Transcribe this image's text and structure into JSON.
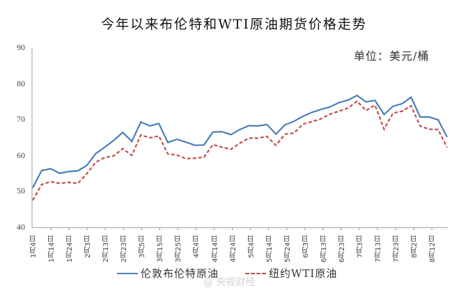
{
  "title": "今年以来布伦特和WTI原油期货价格走势",
  "unit_label": "单位：美元/桶",
  "watermark": "@ 央视财经",
  "legend": [
    {
      "label": "伦敦布伦特原油",
      "color": "#4a7ebb",
      "style": "solid"
    },
    {
      "label": "纽约WTI原油",
      "color": "#c0504d",
      "style": "dashed"
    }
  ],
  "y_ticks": [
    "90",
    "80",
    "70",
    "60",
    "50",
    "40"
  ],
  "x_ticks": [
    "1月4日",
    "1月14日",
    "1月24日",
    "2月3日",
    "2月13日",
    "2月23日",
    "3月5日",
    "3月15日",
    "3月25日",
    "4月4日",
    "4月14日",
    "4月24日",
    "5月4日",
    "5月14日",
    "5月24日",
    "6月3日",
    "6月13日",
    "6月23日",
    "7月3日",
    "7月13日",
    "7月23日",
    "8月2日",
    "8月12日"
  ],
  "chart_data": {
    "type": "line",
    "title": "今年以来布伦特和WTI原油期货价格走势",
    "xlabel": "",
    "ylabel": "美元/桶",
    "ylim": [
      40,
      90
    ],
    "grid": false,
    "legend_position": "bottom",
    "categories": [
      "1月4日",
      "1月9日",
      "1月14日",
      "1月19日",
      "1月24日",
      "1月29日",
      "2月3日",
      "2月8日",
      "2月13日",
      "2月18日",
      "2月23日",
      "2月28日",
      "3月5日",
      "3月10日",
      "3月15日",
      "3月20日",
      "3月25日",
      "3月30日",
      "4月4日",
      "4月9日",
      "4月14日",
      "4月19日",
      "4月24日",
      "4月29日",
      "5月4日",
      "5月9日",
      "5月14日",
      "5月19日",
      "5月24日",
      "5月29日",
      "6月3日",
      "6月8日",
      "6月13日",
      "6月18日",
      "6月23日",
      "6月28日",
      "7月3日",
      "7月8日",
      "7月13日",
      "7月18日",
      "7月23日",
      "7月28日",
      "8月2日",
      "8月7日",
      "8月12日",
      "8月17日",
      "8月21日"
    ],
    "series": [
      {
        "name": "伦敦布伦特原油",
        "values": [
          51.1,
          55.9,
          56.4,
          55.1,
          55.6,
          55.8,
          57.3,
          60.6,
          62.4,
          64.3,
          66.5,
          64.0,
          69.4,
          68.3,
          69.0,
          63.7,
          64.6,
          63.8,
          62.9,
          63.0,
          66.6,
          66.7,
          65.9,
          67.3,
          68.4,
          68.3,
          68.7,
          66.0,
          68.6,
          69.6,
          71.0,
          72.1,
          72.9,
          73.6,
          74.8,
          75.5,
          76.8,
          75.0,
          75.4,
          71.5,
          73.8,
          74.5,
          76.3,
          70.8,
          70.8,
          70.0,
          65.2
        ]
      },
      {
        "name": "纽约WTI原油",
        "values": [
          47.6,
          52.0,
          52.8,
          52.3,
          52.6,
          52.3,
          55.0,
          58.2,
          59.5,
          60.0,
          62.0,
          60.1,
          65.8,
          65.0,
          65.5,
          60.5,
          60.2,
          59.2,
          59.3,
          59.6,
          63.1,
          62.4,
          61.8,
          63.5,
          64.9,
          64.9,
          65.4,
          62.9,
          66.0,
          66.3,
          68.8,
          69.5,
          70.3,
          71.6,
          72.4,
          73.3,
          75.2,
          72.6,
          74.1,
          67.4,
          71.9,
          72.4,
          73.9,
          68.3,
          67.4,
          67.3,
          62.3
        ]
      }
    ]
  }
}
